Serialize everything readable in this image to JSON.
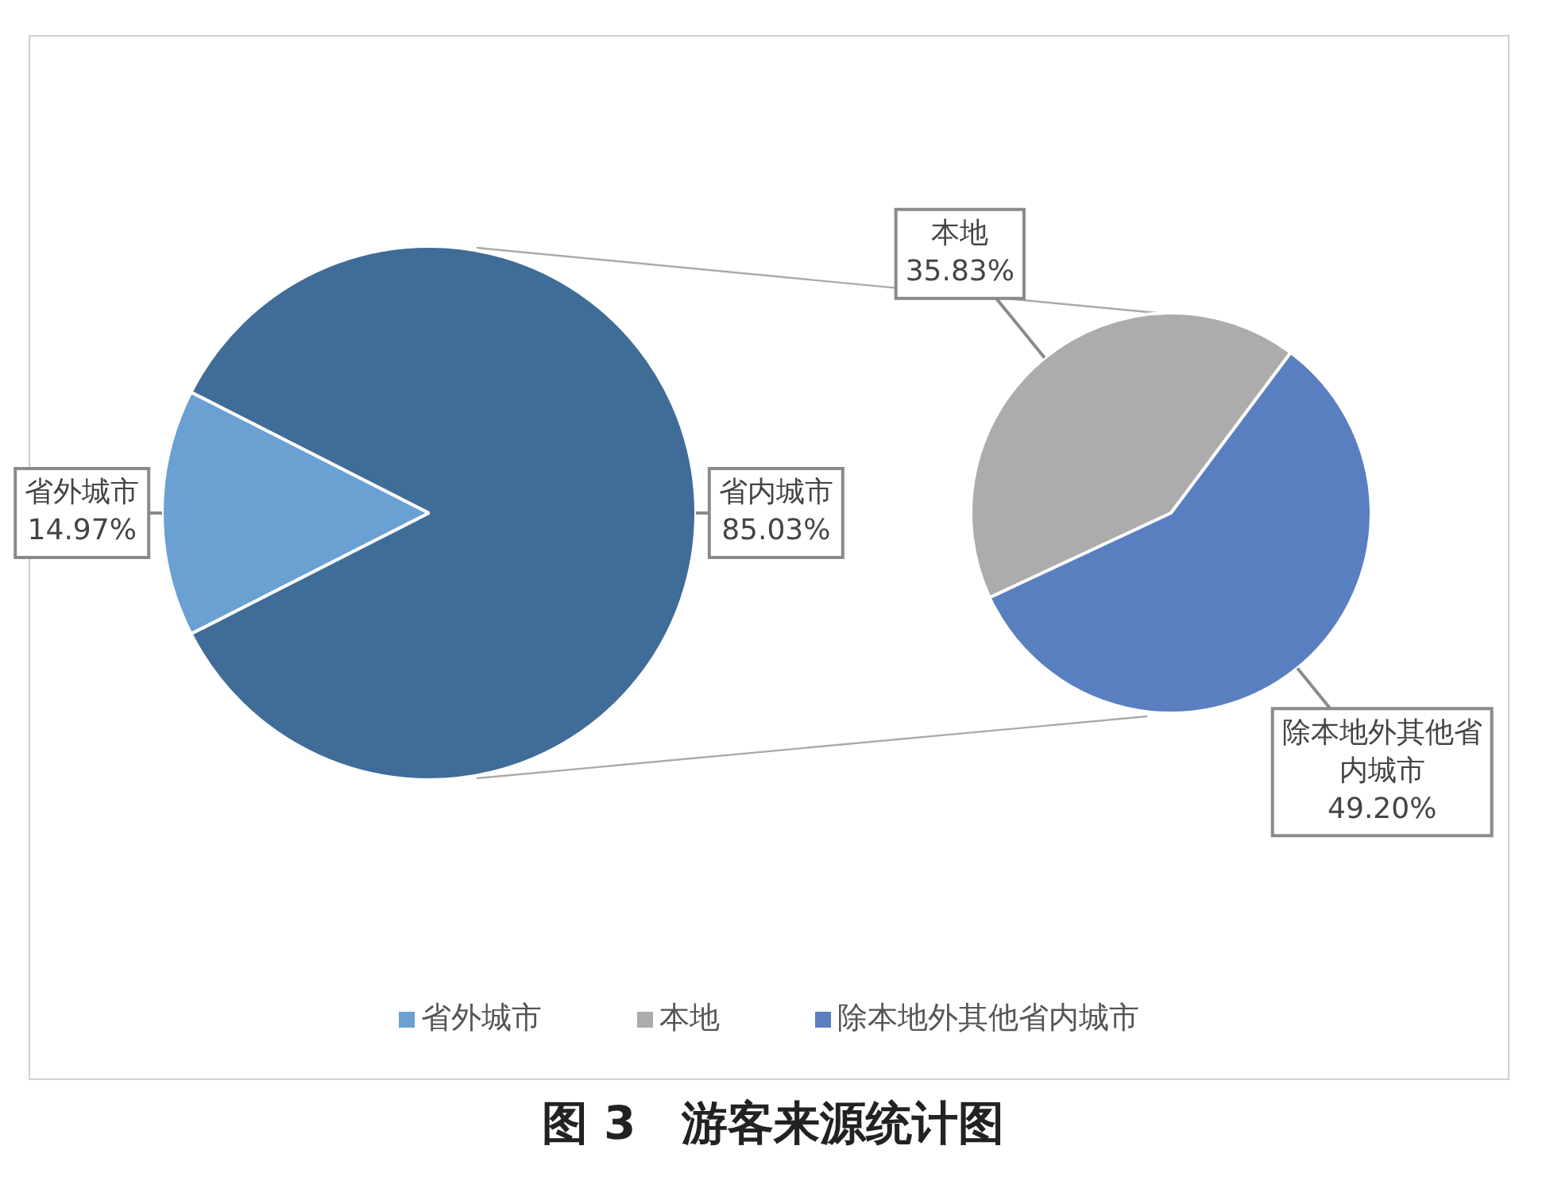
{
  "chart_data": [
    {
      "type": "pie",
      "title": "图 3　游客来源统计图",
      "categories": [
        "省外城市",
        "省内城市"
      ],
      "values": [
        14.97,
        85.03
      ],
      "colors": [
        "#6aa1d2",
        "#3f6d98"
      ],
      "value_labels": [
        "14.97%",
        "85.03%"
      ],
      "legend": "bottom"
    },
    {
      "type": "pie",
      "categories": [
        "本地",
        "除本地外其他省内城市"
      ],
      "values": [
        35.83,
        49.2
      ],
      "colors": [
        "#acacac",
        "#5a7fc0"
      ],
      "value_labels": [
        "35.83%",
        "49.20%"
      ],
      "legend": "bottom"
    }
  ]
}
